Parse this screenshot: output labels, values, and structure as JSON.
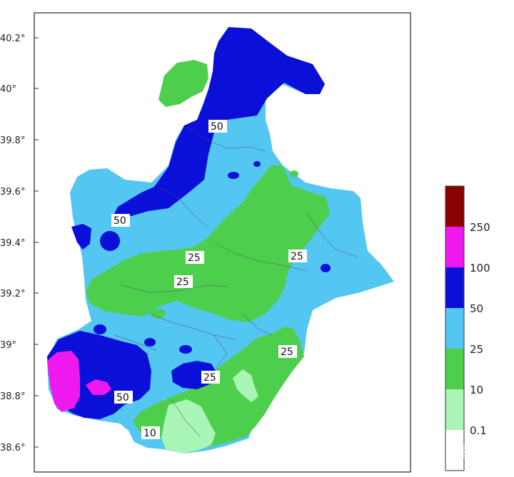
{
  "map": {
    "y_ticks": [
      "40.2°",
      "40°",
      "39.8°",
      "39.6°",
      "39.4°",
      "39.2°",
      "39°",
      "38.8°",
      "38.6°"
    ],
    "contour_labels": [
      "50",
      "50",
      "25",
      "25",
      "25",
      "25",
      "25",
      "50",
      "10"
    ]
  },
  "legend": {
    "labels": [
      "250",
      "100",
      "50",
      "25",
      "10",
      "0.1"
    ],
    "colors": {
      "c0": "#ffffff",
      "c1": "#a9f5b6",
      "c2": "#4dcf4d",
      "c3": "#54c6f2",
      "c4": "#0a10d8",
      "c5": "#ef18ef",
      "c6": "#8b0000"
    }
  },
  "watermark": "钟槿"
}
